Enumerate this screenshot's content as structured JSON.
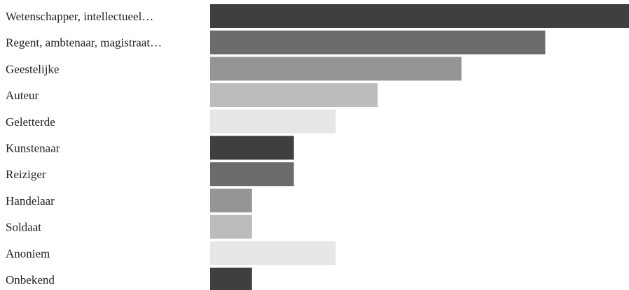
{
  "chart_data": {
    "type": "bar",
    "orientation": "horizontal",
    "categories": [
      "Wetenschapper, intellectueel…",
      "Regent, ambtenaar, magistraat…",
      "Geestelijke",
      "Auteur",
      "Geletterde",
      "Kunstenaar",
      "Reiziger",
      "Handelaar",
      "Soldaat",
      "Anoniem",
      "Onbekend"
    ],
    "values": [
      10,
      8,
      6,
      4,
      3,
      2,
      2,
      1,
      1,
      3,
      1
    ],
    "xlim": [
      0,
      10
    ],
    "title": "",
    "xlabel": "",
    "ylabel": "",
    "grid": false,
    "legend": "none",
    "colors": [
      "#3f3f3f",
      "#6b6b6d",
      "#959597",
      "#bcbcbd",
      "#e6e7e6"
    ]
  }
}
